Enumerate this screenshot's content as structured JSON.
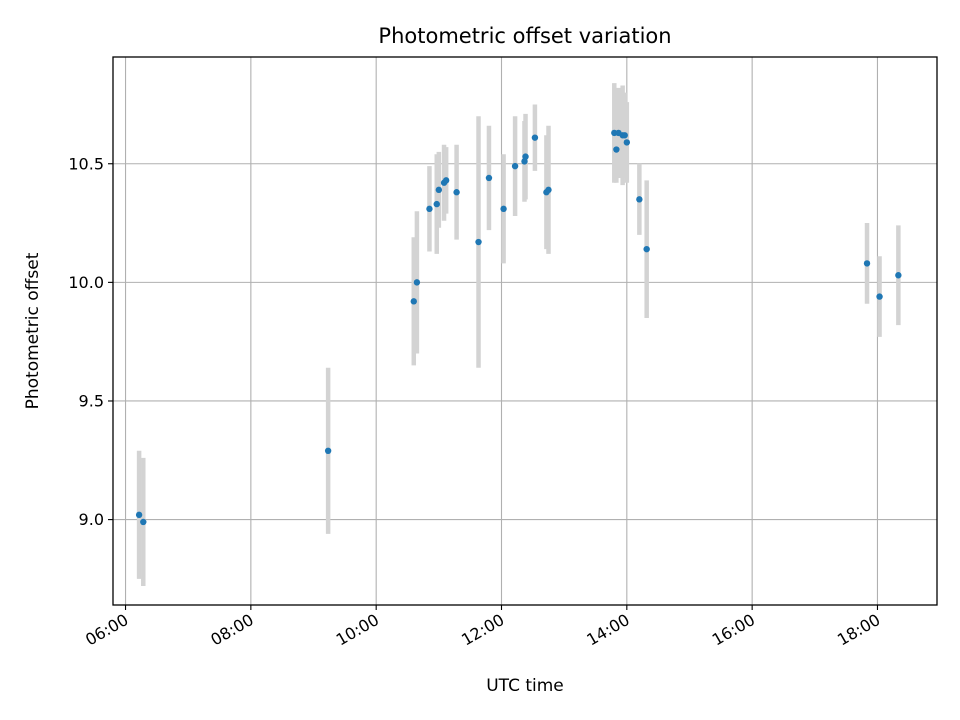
{
  "chart_data": {
    "type": "scatter",
    "title": "Photometric offset variation",
    "xlabel": "UTC time",
    "ylabel": "Photometric offset",
    "x_axis_type": "time",
    "xlim": [
      "05:48",
      "18:57"
    ],
    "ylim": [
      8.64,
      10.95
    ],
    "x_ticks": [
      "06:00",
      "08:00",
      "10:00",
      "12:00",
      "14:00",
      "16:00",
      "18:00"
    ],
    "y_ticks": [
      9.0,
      9.5,
      10.0,
      10.5
    ],
    "y_tick_labels": [
      "9.0",
      "9.5",
      "10.0",
      "10.5"
    ],
    "grid": true,
    "colors": {
      "marker": "#1f77b4",
      "errorbar": "#d3d3d3",
      "grid": "#b0b0b0"
    },
    "points": [
      {
        "t": "06:13",
        "y": 9.02,
        "err": 0.27
      },
      {
        "t": "06:17",
        "y": 8.99,
        "err": 0.27
      },
      {
        "t": "09:14",
        "y": 9.29,
        "err": 0.35
      },
      {
        "t": "10:36",
        "y": 9.92,
        "err": 0.27
      },
      {
        "t": "10:39",
        "y": 10.0,
        "err": 0.3
      },
      {
        "t": "10:51",
        "y": 10.31,
        "err": 0.18
      },
      {
        "t": "10:58",
        "y": 10.33,
        "err": 0.21
      },
      {
        "t": "11:00",
        "y": 10.39,
        "err": 0.16
      },
      {
        "t": "11:05",
        "y": 10.42,
        "err": 0.16
      },
      {
        "t": "11:07",
        "y": 10.43,
        "err": 0.14
      },
      {
        "t": "11:17",
        "y": 10.38,
        "err": 0.2
      },
      {
        "t": "11:38",
        "y": 10.17,
        "err": 0.53
      },
      {
        "t": "11:48",
        "y": 10.44,
        "err": 0.22
      },
      {
        "t": "12:02",
        "y": 10.31,
        "err": 0.23
      },
      {
        "t": "12:13",
        "y": 10.49,
        "err": 0.21
      },
      {
        "t": "12:22",
        "y": 10.51,
        "err": 0.17
      },
      {
        "t": "12:23",
        "y": 10.53,
        "err": 0.18
      },
      {
        "t": "12:32",
        "y": 10.61,
        "err": 0.14
      },
      {
        "t": "12:43",
        "y": 10.38,
        "err": 0.24
      },
      {
        "t": "12:45",
        "y": 10.39,
        "err": 0.27
      },
      {
        "t": "13:48",
        "y": 10.63,
        "err": 0.21
      },
      {
        "t": "13:50",
        "y": 10.56,
        "err": 0.14
      },
      {
        "t": "13:52",
        "y": 10.63,
        "err": 0.19
      },
      {
        "t": "13:56",
        "y": 10.62,
        "err": 0.21
      },
      {
        "t": "13:58",
        "y": 10.62,
        "err": 0.18
      },
      {
        "t": "14:00",
        "y": 10.59,
        "err": 0.17
      },
      {
        "t": "14:12",
        "y": 10.35,
        "err": 0.15
      },
      {
        "t": "14:19",
        "y": 10.14,
        "err": 0.29
      },
      {
        "t": "17:50",
        "y": 10.08,
        "err": 0.17
      },
      {
        "t": "18:02",
        "y": 9.94,
        "err": 0.17
      },
      {
        "t": "18:20",
        "y": 10.03,
        "err": 0.21
      }
    ]
  }
}
